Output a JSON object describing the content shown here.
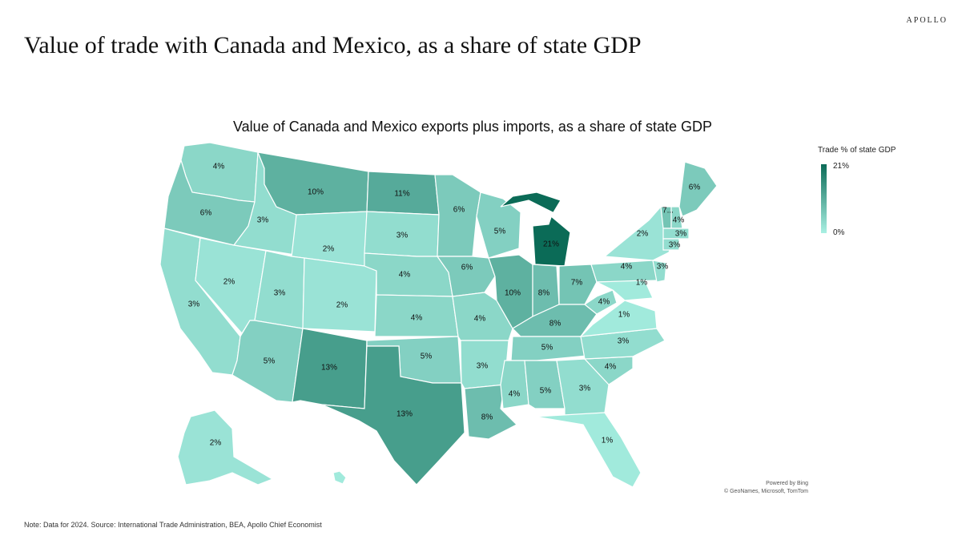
{
  "brand": "APOLLO",
  "title": "Value of trade with Canada and Mexico, as a share of state GDP",
  "map_title": "Value of Canada and Mexico exports plus imports, as a share of state GDP",
  "legend": {
    "title": "Trade % of state GDP",
    "max": "21%",
    "min": "0%",
    "high_color": "#0b6b57",
    "low_color": "#a9f0e3"
  },
  "attribution": [
    "Powered by Bing",
    "© GeoNames, Microsoft, TomTom"
  ],
  "note": "Note: Data for 2024. Source: International Trade Administration, BEA, Apollo Chief Economist",
  "states": [
    {
      "code": "WA",
      "label": "4%",
      "value": 4
    },
    {
      "code": "OR",
      "label": "6%",
      "value": 6
    },
    {
      "code": "CA",
      "label": "3%",
      "value": 3
    },
    {
      "code": "ID",
      "label": "3%",
      "value": 3
    },
    {
      "code": "NV",
      "label": "2%",
      "value": 2
    },
    {
      "code": "MT",
      "label": "10%",
      "value": 10
    },
    {
      "code": "WY",
      "label": "2%",
      "value": 2
    },
    {
      "code": "UT",
      "label": "3%",
      "value": 3
    },
    {
      "code": "AZ",
      "label": "5%",
      "value": 5
    },
    {
      "code": "CO",
      "label": "2%",
      "value": 2
    },
    {
      "code": "NM",
      "label": "13%",
      "value": 13
    },
    {
      "code": "ND",
      "label": "11%",
      "value": 11
    },
    {
      "code": "SD",
      "label": "3%",
      "value": 3
    },
    {
      "code": "NE",
      "label": "4%",
      "value": 4
    },
    {
      "code": "KS",
      "label": "4%",
      "value": 4
    },
    {
      "code": "OK",
      "label": "5%",
      "value": 5
    },
    {
      "code": "TX",
      "label": "13%",
      "value": 13
    },
    {
      "code": "MN",
      "label": "6%",
      "value": 6
    },
    {
      "code": "IA",
      "label": "6%",
      "value": 6
    },
    {
      "code": "MO",
      "label": "4%",
      "value": 4
    },
    {
      "code": "AR",
      "label": "3%",
      "value": 3
    },
    {
      "code": "LA",
      "label": "8%",
      "value": 8
    },
    {
      "code": "WI",
      "label": "5%",
      "value": 5
    },
    {
      "code": "IL",
      "label": "10%",
      "value": 10
    },
    {
      "code": "MI",
      "label": "21%",
      "value": 21
    },
    {
      "code": "IN",
      "label": "8%",
      "value": 8
    },
    {
      "code": "OH",
      "label": "7%",
      "value": 7
    },
    {
      "code": "KY",
      "label": "8%",
      "value": 8
    },
    {
      "code": "TN",
      "label": "5%",
      "value": 5
    },
    {
      "code": "MS",
      "label": "4%",
      "value": 4
    },
    {
      "code": "AL",
      "label": "5%",
      "value": 5
    },
    {
      "code": "GA",
      "label": "3%",
      "value": 3
    },
    {
      "code": "FL",
      "label": "1%",
      "value": 1
    },
    {
      "code": "SC",
      "label": "4%",
      "value": 4
    },
    {
      "code": "NC",
      "label": "3%",
      "value": 3
    },
    {
      "code": "VA",
      "label": "1%",
      "value": 1
    },
    {
      "code": "WV",
      "label": "4%",
      "value": 4
    },
    {
      "code": "PA",
      "label": "4%",
      "value": 4
    },
    {
      "code": "NY",
      "label": "2%",
      "value": 2
    },
    {
      "code": "NJ",
      "label": "3%",
      "value": 3
    },
    {
      "code": "MD",
      "label": "1%",
      "value": 1
    },
    {
      "code": "VT",
      "label": "7...",
      "value": 7
    },
    {
      "code": "NH",
      "label": "4%",
      "value": 4
    },
    {
      "code": "ME",
      "label": "6%",
      "value": 6
    },
    {
      "code": "MA",
      "label": "3%",
      "value": 3
    },
    {
      "code": "CT",
      "label": "3%",
      "value": 3
    },
    {
      "code": "AK",
      "label": "2%",
      "value": 2
    },
    {
      "code": "HI",
      "label": "",
      "value": 1
    }
  ]
}
